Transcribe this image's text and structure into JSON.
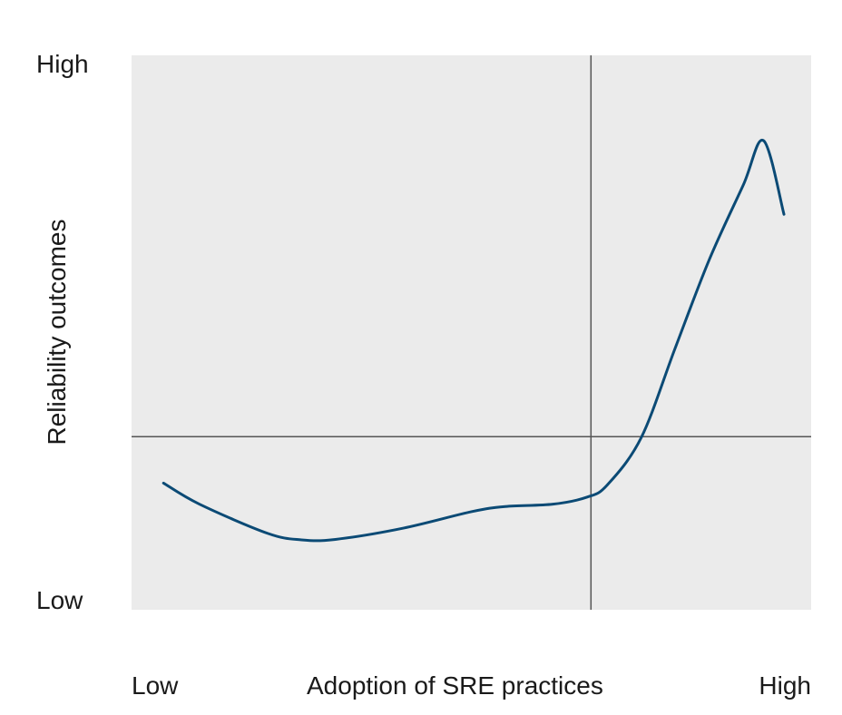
{
  "chart_data": {
    "type": "line",
    "title": "",
    "xlabel": "Adoption of SRE practices",
    "ylabel": "Reliability outcomes",
    "x_tick_labels": [
      "Low",
      "High"
    ],
    "y_tick_labels": [
      "Low",
      "High"
    ],
    "xlim": [
      0,
      100
    ],
    "ylim": [
      0,
      100
    ],
    "grid": false,
    "reference_lines": {
      "x": 67.6,
      "y": 36.9
    },
    "series": [
      {
        "x": [
          4.7,
          10,
          20,
          25,
          30,
          40,
          50,
          55,
          62,
          67,
          70,
          75,
          80,
          85,
          90,
          93,
          96
        ],
        "y": [
          27.0,
          22.5,
          16.3,
          14.9,
          15.0,
          17.4,
          20.9,
          22.0,
          22.5,
          24.0,
          26.6,
          36.7,
          55.8,
          74.6,
          90.5,
          100.0,
          84.3
        ],
        "color": "#0b4a75"
      }
    ],
    "plot_background": "#ebebeb",
    "reference_line_color": "#555555"
  }
}
